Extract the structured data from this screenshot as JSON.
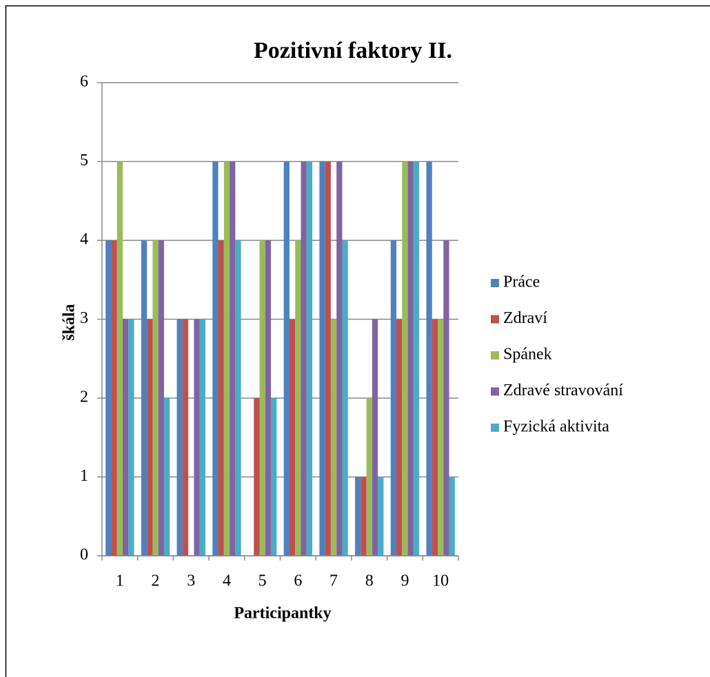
{
  "chart_data": {
    "type": "bar",
    "title": "Pozitivní faktory II.",
    "x_label": "Participantky",
    "y_label": "škála",
    "categories": [
      "1",
      "2",
      "3",
      "4",
      "5",
      "6",
      "7",
      "8",
      "9",
      "10"
    ],
    "series": [
      {
        "name": "Práce",
        "color": "#4f81bd",
        "values": [
          4,
          4,
          3,
          5,
          0,
          5,
          5,
          1,
          4,
          5
        ]
      },
      {
        "name": "Zdraví",
        "color": "#c0504d",
        "values": [
          4,
          3,
          3,
          4,
          2,
          3,
          5,
          1,
          3,
          3
        ]
      },
      {
        "name": "Spánek",
        "color": "#9bbb59",
        "values": [
          5,
          4,
          0,
          5,
          4,
          4,
          3,
          2,
          5,
          3
        ]
      },
      {
        "name": "Zdravé stravování",
        "color": "#8064a2",
        "values": [
          3,
          4,
          3,
          5,
          4,
          5,
          5,
          3,
          5,
          4
        ]
      },
      {
        "name": "Fyzická aktivita",
        "color": "#4bacc6",
        "values": [
          3,
          2,
          3,
          4,
          2,
          5,
          4,
          1,
          5,
          1
        ]
      }
    ],
    "ylim": [
      0,
      6
    ],
    "yticks": [
      0,
      1,
      2,
      3,
      4,
      5,
      6
    ],
    "grid": true,
    "legend": "right"
  }
}
